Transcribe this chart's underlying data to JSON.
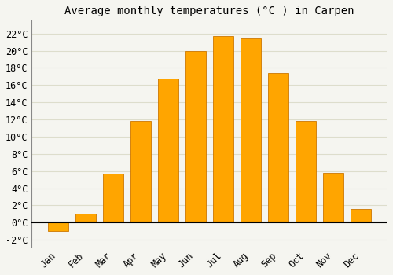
{
  "title": "Average monthly temperatures (°C ) in Carpen",
  "months": [
    "Jan",
    "Feb",
    "Mar",
    "Apr",
    "May",
    "Jun",
    "Jul",
    "Aug",
    "Sep",
    "Oct",
    "Nov",
    "Dec"
  ],
  "values": [
    -1.0,
    1.0,
    5.7,
    11.8,
    16.8,
    20.0,
    21.7,
    21.4,
    17.4,
    11.8,
    5.8,
    1.6
  ],
  "bar_color_positive": "#FFA500",
  "bar_color_negative": "#FFAA00",
  "bar_edge_color": "#CC7700",
  "background_color": "#F5F5F0",
  "plot_bg_color": "#F5F5F0",
  "grid_color": "#DDDDCC",
  "zero_line_color": "#000000",
  "yticks": [
    -2,
    0,
    2,
    4,
    6,
    8,
    10,
    12,
    14,
    16,
    18,
    20,
    22
  ],
  "ylim": [
    -2.8,
    23.5
  ],
  "title_fontsize": 10,
  "tick_fontsize": 8.5,
  "font_family": "monospace",
  "bar_width": 0.75
}
